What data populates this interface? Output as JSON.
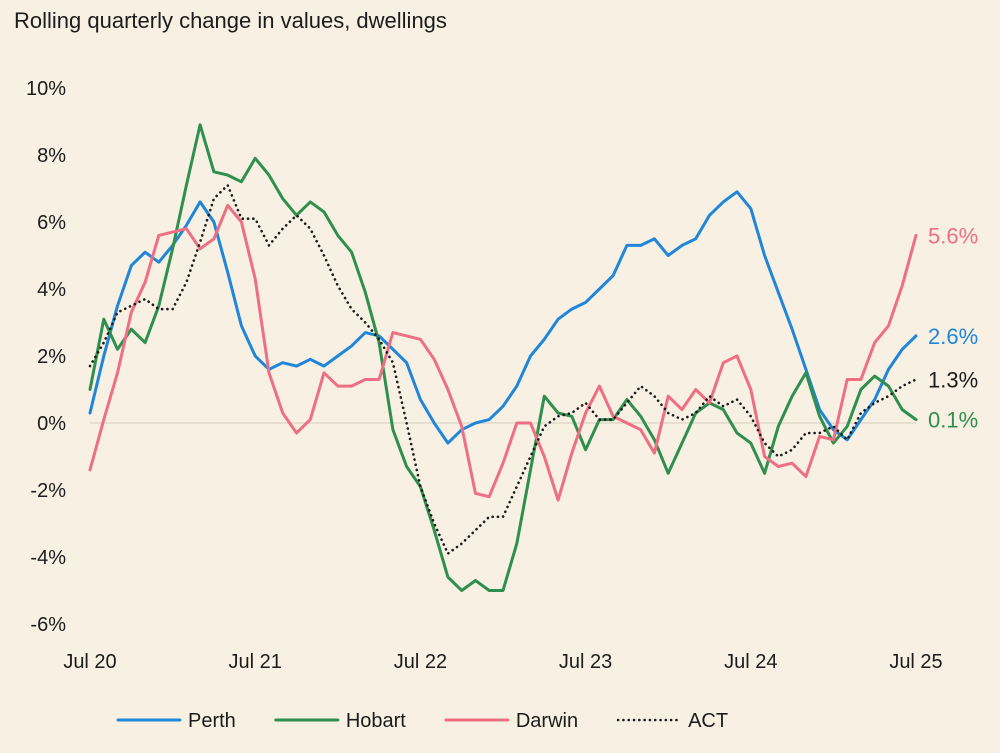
{
  "chart_data": {
    "type": "line",
    "title": "Rolling quarterly change in values, dwellings",
    "xlabel": "",
    "ylabel": "",
    "ylim": [
      -6,
      10
    ],
    "yticks": [
      10,
      8,
      6,
      4,
      2,
      0,
      -2,
      -4,
      -6
    ],
    "ytick_labels": [
      "10%",
      "8%",
      "6%",
      "4%",
      "2%",
      "0%",
      "-2%",
      "-4%",
      "-6%"
    ],
    "xticks": [
      "Jul 20",
      "Jul 21",
      "Jul 22",
      "Jul 23",
      "Jul 24",
      "Jul 25"
    ],
    "x_start": "Jul 20",
    "x_end": "Jul 25",
    "frequency": "monthly",
    "grid": false,
    "zero_line": true,
    "legend_position": "bottom",
    "series": [
      {
        "name": "Perth",
        "color": "#1f86d9",
        "dash": "solid",
        "end_label": "2.6%",
        "values": [
          0.3,
          2.0,
          3.5,
          4.7,
          5.1,
          4.8,
          5.3,
          5.9,
          6.6,
          6.0,
          4.5,
          2.9,
          2.0,
          1.6,
          1.8,
          1.7,
          1.9,
          1.7,
          2.0,
          2.3,
          2.7,
          2.6,
          2.2,
          1.8,
          0.7,
          0.0,
          -0.6,
          -0.2,
          0.0,
          0.1,
          0.5,
          1.1,
          2.0,
          2.5,
          3.1,
          3.4,
          3.6,
          4.0,
          4.4,
          5.3,
          5.3,
          5.5,
          5.0,
          5.3,
          5.5,
          6.2,
          6.6,
          6.9,
          6.4,
          5.0,
          3.9,
          2.8,
          1.6,
          0.4,
          -0.2,
          -0.5,
          0.1,
          0.7,
          1.6,
          2.2,
          2.6
        ]
      },
      {
        "name": "Hobart",
        "color": "#2f8f4e",
        "dash": "solid",
        "end_label": "0.1%",
        "values": [
          1.0,
          3.1,
          2.2,
          2.8,
          2.4,
          3.5,
          5.2,
          7.1,
          8.9,
          7.5,
          7.4,
          7.2,
          7.9,
          7.4,
          6.7,
          6.2,
          6.6,
          6.3,
          5.6,
          5.1,
          3.9,
          2.4,
          -0.2,
          -1.3,
          -1.9,
          -3.2,
          -4.6,
          -5.0,
          -4.7,
          -5.0,
          -5.0,
          -3.6,
          -1.4,
          0.8,
          0.3,
          0.2,
          -0.8,
          0.1,
          0.1,
          0.7,
          0.2,
          -0.5,
          -1.5,
          -0.6,
          0.3,
          0.6,
          0.4,
          -0.3,
          -0.6,
          -1.5,
          -0.1,
          0.8,
          1.5,
          0.2,
          -0.6,
          -0.1,
          1.0,
          1.4,
          1.1,
          0.4,
          0.1
        ]
      },
      {
        "name": "Darwin",
        "color": "#ee6f83",
        "dash": "solid",
        "end_label": "5.6%",
        "values": [
          -1.4,
          0.1,
          1.5,
          3.3,
          4.2,
          5.6,
          5.7,
          5.8,
          5.2,
          5.5,
          6.5,
          6.0,
          4.3,
          1.5,
          0.3,
          -0.3,
          0.1,
          1.5,
          1.1,
          1.1,
          1.3,
          1.3,
          2.7,
          2.6,
          2.5,
          1.9,
          1.0,
          -0.1,
          -2.1,
          -2.2,
          -1.2,
          0.0,
          0.0,
          -1.0,
          -2.3,
          -0.9,
          0.3,
          1.1,
          0.2,
          0.0,
          -0.2,
          -0.9,
          0.8,
          0.4,
          1.0,
          0.6,
          1.8,
          2.0,
          1.0,
          -1.0,
          -1.3,
          -1.2,
          -1.6,
          -0.4,
          -0.5,
          1.3,
          1.3,
          2.4,
          2.9,
          4.1,
          5.6
        ]
      },
      {
        "name": "ACT",
        "color": "#1c1c1c",
        "dash": "dotted",
        "end_label": "1.3%",
        "values": [
          1.7,
          2.4,
          3.3,
          3.5,
          3.7,
          3.4,
          3.4,
          4.2,
          5.4,
          6.7,
          7.1,
          6.1,
          6.1,
          5.3,
          5.8,
          6.2,
          5.8,
          5.0,
          4.1,
          3.4,
          3.0,
          2.5,
          1.8,
          0.0,
          -1.9,
          -3.0,
          -3.9,
          -3.6,
          -3.2,
          -2.8,
          -2.8,
          -1.9,
          -1.0,
          -0.1,
          0.2,
          0.3,
          0.6,
          0.1,
          0.1,
          0.6,
          1.1,
          0.8,
          0.3,
          0.1,
          0.3,
          0.8,
          0.5,
          0.7,
          0.2,
          -0.6,
          -1.0,
          -0.8,
          -0.3,
          -0.3,
          -0.1,
          -0.5,
          0.3,
          0.6,
          0.8,
          1.1,
          1.3
        ]
      }
    ]
  }
}
